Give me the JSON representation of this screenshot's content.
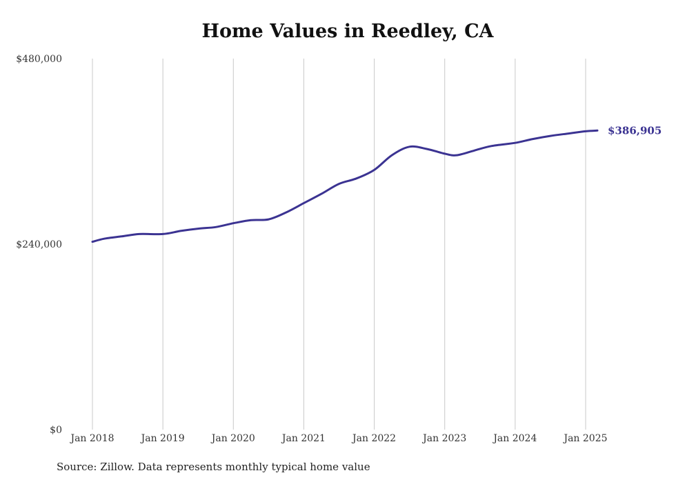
{
  "title": "Home Values in Reedley, CA",
  "source": "Source: Zillow. Data represents monthly typical home value",
  "colors": {
    "line": "#3b3392",
    "grid": "#c8c8c8",
    "text": "#333333"
  },
  "chart_data": {
    "type": "line",
    "title": "Home Values in Reedley, CA",
    "xlabel": "",
    "ylabel": "",
    "ylim": [
      0,
      480000
    ],
    "y_ticks": [
      0,
      240000,
      480000
    ],
    "y_tick_labels": [
      "$0",
      "$240,000",
      "$480,000"
    ],
    "x_ticks": [
      "2018-01",
      "2019-01",
      "2020-01",
      "2021-01",
      "2022-01",
      "2023-01",
      "2024-01",
      "2025-01"
    ],
    "x_tick_labels": [
      "Jan 2018",
      "Jan 2019",
      "Jan 2020",
      "Jan 2021",
      "Jan 2022",
      "Jan 2023",
      "Jan 2024",
      "Jan 2025"
    ],
    "grid": "vertical",
    "end_label": "$386,905",
    "series": [
      {
        "values": [
          [
            "2018-01",
            243000
          ],
          [
            "2018-03",
            247000
          ],
          [
            "2018-06",
            250000
          ],
          [
            "2018-09",
            253000
          ],
          [
            "2019-01",
            253000
          ],
          [
            "2019-04",
            257000
          ],
          [
            "2019-07",
            260000
          ],
          [
            "2019-10",
            262000
          ],
          [
            "2020-01",
            267000
          ],
          [
            "2020-04",
            271000
          ],
          [
            "2020-07",
            272000
          ],
          [
            "2020-10",
            281000
          ],
          [
            "2021-01",
            293000
          ],
          [
            "2021-04",
            305000
          ],
          [
            "2021-07",
            318000
          ],
          [
            "2021-10",
            325000
          ],
          [
            "2022-01",
            336000
          ],
          [
            "2022-04",
            355000
          ],
          [
            "2022-07",
            366000
          ],
          [
            "2022-10",
            363000
          ],
          [
            "2023-01",
            357000
          ],
          [
            "2023-03",
            355000
          ],
          [
            "2023-06",
            361000
          ],
          [
            "2023-09",
            367000
          ],
          [
            "2024-01",
            371000
          ],
          [
            "2024-04",
            376000
          ],
          [
            "2024-07",
            380000
          ],
          [
            "2024-10",
            383000
          ],
          [
            "2025-01",
            386000
          ],
          [
            "2025-03",
            386905
          ]
        ]
      }
    ]
  }
}
